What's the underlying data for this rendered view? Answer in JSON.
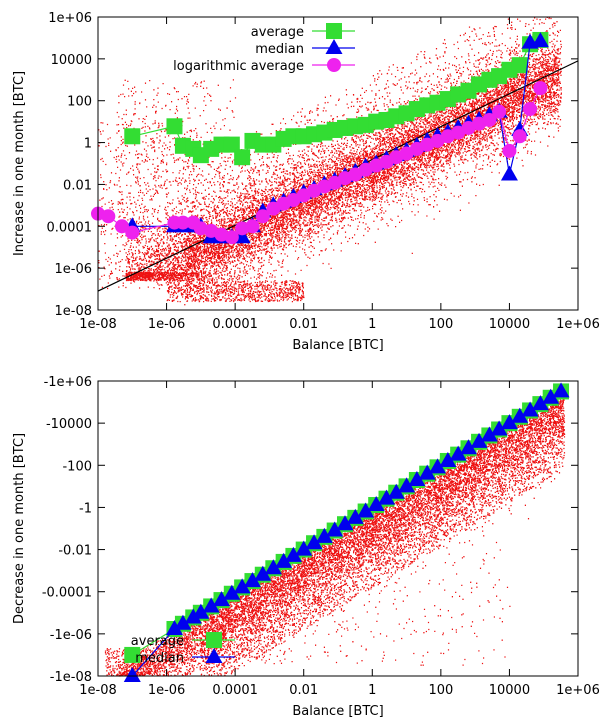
{
  "colors": {
    "average": "#33dd33",
    "median": "#0000ee",
    "log_average": "#ee22ee",
    "scatter": "#ee1111",
    "fit": "#000000"
  },
  "chart_data": [
    {
      "type": "scatter",
      "xlabel": "Balance [BTC]",
      "ylabel": "Increase in one month [BTC]",
      "xscale": "log",
      "yscale": "log",
      "xlim": [
        1e-08,
        1000000
      ],
      "ylim": [
        1e-08,
        1000000
      ],
      "x_ticks": [
        "1e-08",
        "1e-06",
        "0.0001",
        "0.01",
        "1",
        "100",
        "10000",
        "1e+06"
      ],
      "y_ticks": [
        "1e-08",
        "1e-06",
        "0.0001",
        "0.01",
        "1",
        "100",
        "10000",
        "1e+06"
      ],
      "legend_position": "top-center",
      "fit_line": {
        "x": [
          1e-08,
          1000000
        ],
        "y": [
          8e-08,
          8000
        ]
      },
      "series": [
        {
          "name": "average",
          "marker": "square",
          "x": [
            1e-07,
            1.7e-06,
            3e-06,
            6e-06,
            1e-05,
            2e-05,
            4e-05,
            8e-05,
            0.00016,
            0.00032,
            0.00064,
            0.0013,
            0.0026,
            0.005,
            0.01,
            0.02,
            0.04,
            0.08,
            0.16,
            0.32,
            0.64,
            1.3,
            2.6,
            5,
            10,
            20,
            40,
            80,
            160,
            320,
            640,
            1300,
            2600,
            5000,
            10000,
            20000,
            40000,
            80000
          ],
          "y": [
            2,
            6,
            0.7,
            0.5,
            0.25,
            0.5,
            0.8,
            0.8,
            0.2,
            1.2,
            0.8,
            0.8,
            1.5,
            2,
            2,
            2.5,
            3,
            4,
            5,
            6,
            7,
            10,
            12,
            18,
            25,
            40,
            60,
            80,
            120,
            200,
            300,
            600,
            1000,
            1500,
            3000,
            5000,
            50000,
            80000
          ]
        },
        {
          "name": "median",
          "marker": "triangle",
          "x": [
            1e-07,
            1.7e-06,
            3e-06,
            6e-06,
            1e-05,
            2e-05,
            4e-05,
            8e-05,
            0.00016,
            0.00032,
            0.00064,
            0.0013,
            0.0026,
            0.005,
            0.01,
            0.02,
            0.04,
            0.08,
            0.16,
            0.32,
            0.64,
            1.3,
            2.6,
            5,
            10,
            20,
            40,
            80,
            160,
            320,
            640,
            1300,
            2600,
            5000,
            10000,
            20000,
            40000,
            80000
          ],
          "y": [
            0.0001,
            0.0001,
            0.0001,
            0.0001,
            0.0001,
            3e-05,
            3e-05,
            3e-05,
            3e-05,
            0.0001,
            0.0005,
            0.001,
            0.0015,
            0.0025,
            0.004,
            0.006,
            0.01,
            0.015,
            0.025,
            0.04,
            0.07,
            0.1,
            0.16,
            0.25,
            0.4,
            0.7,
            1.2,
            2,
            3,
            5,
            8,
            12,
            20,
            30,
            0.03,
            4,
            60000,
            70000
          ]
        },
        {
          "name": "logarithmic average",
          "marker": "circle",
          "x": [
            1e-08,
            2e-08,
            5e-08,
            1e-07,
            1.7e-06,
            3e-06,
            6e-06,
            1e-05,
            2e-05,
            4e-05,
            8e-05,
            0.00016,
            0.00032,
            0.00064,
            0.0013,
            0.0026,
            0.005,
            0.01,
            0.02,
            0.04,
            0.08,
            0.16,
            0.32,
            0.64,
            1.3,
            2.6,
            5,
            10,
            20,
            40,
            80,
            160,
            320,
            640,
            1300,
            2600,
            5000,
            10000,
            20000,
            40000,
            80000
          ],
          "y": [
            0.0004,
            0.0003,
            0.0001,
            5e-05,
            0.00015,
            0.00015,
            0.00015,
            8e-05,
            6e-05,
            4e-05,
            3e-05,
            8e-05,
            0.0001,
            0.0003,
            0.0007,
            0.0012,
            0.0018,
            0.003,
            0.005,
            0.008,
            0.012,
            0.02,
            0.03,
            0.05,
            0.08,
            0.12,
            0.2,
            0.3,
            0.5,
            0.8,
            1.2,
            2,
            3,
            5,
            8,
            12,
            30,
            0.4,
            2,
            40,
            400
          ]
        }
      ]
    },
    {
      "type": "scatter",
      "xlabel": "Balance [BTC]",
      "ylabel": "Decrease in one month [BTC]",
      "xscale": "log",
      "yscale": "log",
      "xlim": [
        1e-08,
        1000000
      ],
      "ylim": [
        -1e-08,
        -1000000
      ],
      "x_ticks": [
        "1e-08",
        "1e-06",
        "0.0001",
        "0.01",
        "1",
        "100",
        "10000",
        "1e+06"
      ],
      "y_ticks": [
        "-1e-08",
        "-1e-06",
        "-0.0001",
        "-0.01",
        "-1",
        "-100",
        "-10000",
        "-1e+06"
      ],
      "legend_position": "bottom-left",
      "series": [
        {
          "name": "average",
          "marker": "square",
          "x": [
            1e-07,
            1.7e-06,
            3e-06,
            6e-06,
            1e-05,
            2e-05,
            4e-05,
            8e-05,
            0.00016,
            0.00032,
            0.00064,
            0.0013,
            0.0026,
            0.005,
            0.01,
            0.02,
            0.04,
            0.08,
            0.16,
            0.32,
            0.64,
            1.3,
            2.6,
            5,
            10,
            20,
            40,
            80,
            160,
            320,
            640,
            1300,
            2600,
            5000,
            10000,
            20000,
            40000,
            80000,
            160000,
            320000
          ],
          "y": [
            -1e-07,
            -1.7e-06,
            -3e-06,
            -6e-06,
            -1e-05,
            -2e-05,
            -4e-05,
            -8e-05,
            -0.00016,
            -0.00032,
            -0.00064,
            -0.0013,
            -0.0026,
            -0.005,
            -0.01,
            -0.02,
            -0.04,
            -0.08,
            -0.16,
            -0.32,
            -0.64,
            -1.3,
            -2.6,
            -5,
            -10,
            -20,
            -40,
            -80,
            -160,
            -320,
            -640,
            -1300,
            -2600,
            -5000,
            -10000,
            -20000,
            -40000,
            -80000,
            -160000,
            -320000
          ]
        },
        {
          "name": "median",
          "marker": "triangle",
          "x": [
            1e-07,
            1.7e-06,
            3e-06,
            6e-06,
            1e-05,
            2e-05,
            4e-05,
            8e-05,
            0.00016,
            0.00032,
            0.00064,
            0.0013,
            0.0026,
            0.005,
            0.01,
            0.02,
            0.04,
            0.08,
            0.16,
            0.32,
            0.64,
            1.3,
            2.6,
            5,
            10,
            20,
            40,
            80,
            160,
            320,
            640,
            1300,
            2600,
            5000,
            10000,
            20000,
            40000,
            80000,
            160000,
            320000
          ],
          "y": [
            -1e-08,
            -1.7e-06,
            -3e-06,
            -6e-06,
            -1e-05,
            -2e-05,
            -4e-05,
            -8e-05,
            -0.00016,
            -0.00032,
            -0.00064,
            -0.0013,
            -0.0026,
            -0.005,
            -0.01,
            -0.02,
            -0.04,
            -0.08,
            -0.16,
            -0.32,
            -0.64,
            -1.3,
            -2.6,
            -5,
            -10,
            -20,
            -40,
            -80,
            -160,
            -320,
            -640,
            -1300,
            -2600,
            -5000,
            -10000,
            -20000,
            -40000,
            -80000,
            -160000,
            -320000
          ]
        }
      ]
    }
  ]
}
